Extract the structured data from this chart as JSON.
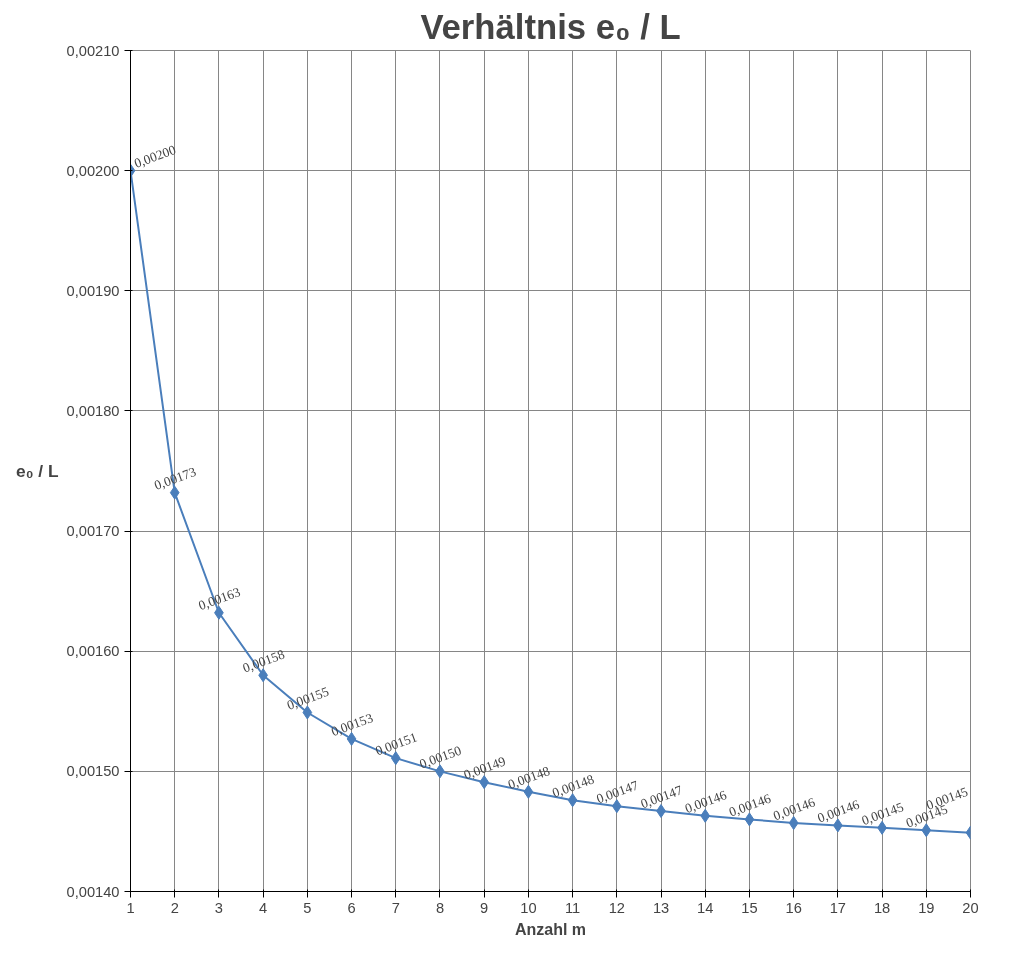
{
  "chart_data": {
    "type": "line",
    "title": "Verhältnis e₀ / L",
    "xlabel": "Anzahl m",
    "ylabel": "e₀ / L",
    "x": [
      1,
      2,
      3,
      4,
      5,
      6,
      7,
      8,
      9,
      10,
      11,
      12,
      13,
      14,
      15,
      16,
      17,
      18,
      19,
      20
    ],
    "series": [
      {
        "color": "#4a7ebb",
        "values": [
          0.002,
          0.001732,
          0.001632,
          0.00158,
          0.001549,
          0.001527,
          0.001511,
          0.0015,
          0.001491,
          0.001483,
          0.001476,
          0.001471,
          0.001467,
          0.001463,
          0.00146,
          0.001457,
          0.001455,
          0.001453,
          0.001451,
          0.001449
        ],
        "value_labels": [
          "0,00200",
          "0,00173",
          "0,00163",
          "0,00158",
          "0,00155",
          "0,00153",
          "0,00151",
          "0,00150",
          "0,00149",
          "0,00148",
          "0,00148",
          "0,00147",
          "0,00147",
          "0,00146",
          "0,00146",
          "0,00146",
          "0,00146",
          "0,00145",
          "0,00145",
          "0,00145"
        ]
      }
    ],
    "xlim": [
      1,
      20
    ],
    "xticks": [
      1,
      2,
      3,
      4,
      5,
      6,
      7,
      8,
      9,
      10,
      11,
      12,
      13,
      14,
      15,
      16,
      17,
      18,
      19,
      20
    ],
    "ylim": [
      0.0014,
      0.0021
    ],
    "yticks": [
      {
        "value": 0.0014,
        "label": "0,00140"
      },
      {
        "value": 0.0015,
        "label": "0,00150"
      },
      {
        "value": 0.0016,
        "label": "0,00160"
      },
      {
        "value": 0.0017,
        "label": "0,00170"
      },
      {
        "value": 0.0018,
        "label": "0,00180"
      },
      {
        "value": 0.0019,
        "label": "0,00190"
      },
      {
        "value": 0.002,
        "label": "0,00200"
      },
      {
        "value": 0.0021,
        "label": "0,00210"
      }
    ],
    "grid": true,
    "marker": "diamond",
    "line_style": "solid"
  }
}
